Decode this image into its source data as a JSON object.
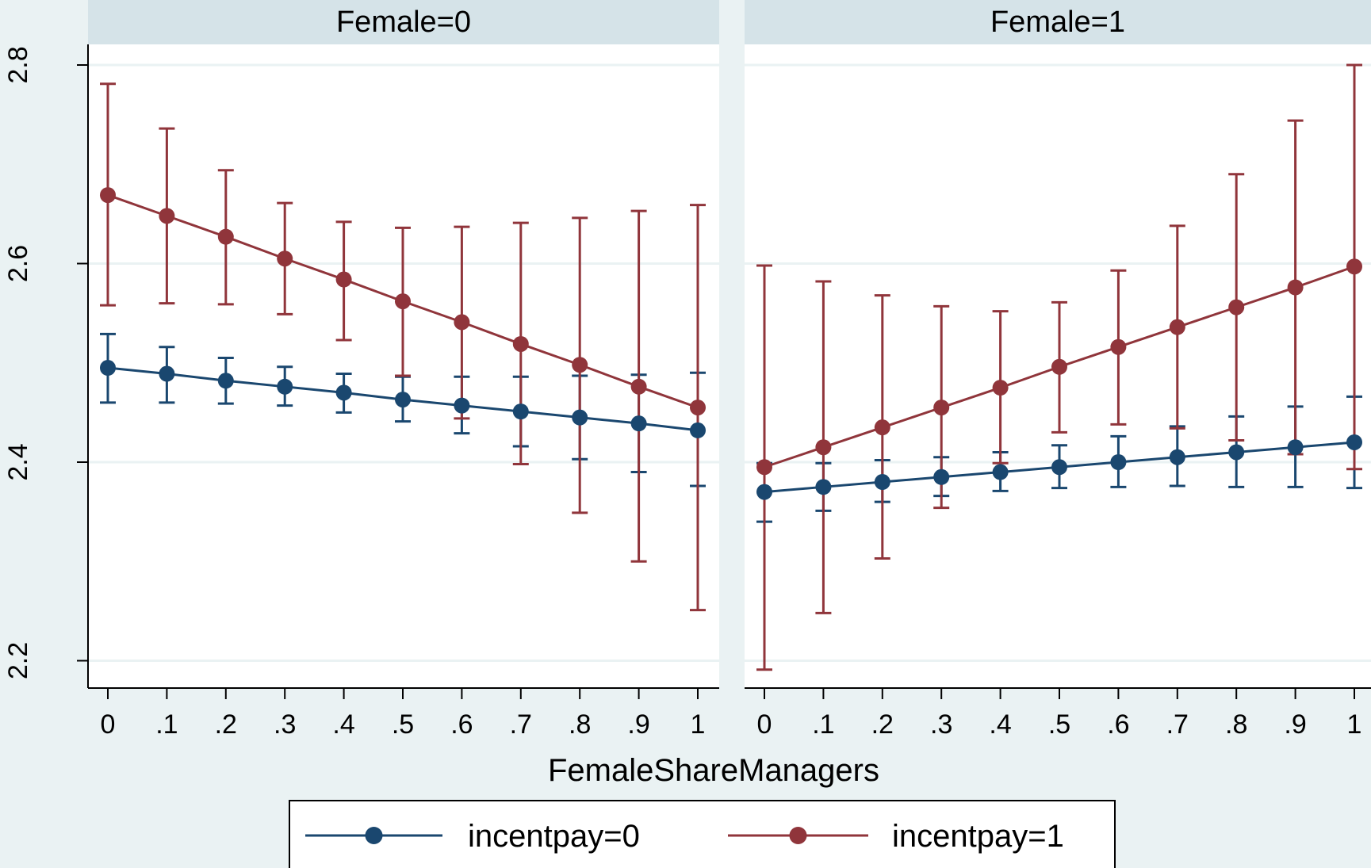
{
  "chart_data": {
    "type": "line",
    "xlabel": "FemaleShareManagers",
    "ylabel": "",
    "x": [
      0,
      0.1,
      0.2,
      0.3,
      0.4,
      0.5,
      0.6,
      0.7,
      0.8,
      0.9,
      1
    ],
    "x_tick_labels": [
      "0",
      ".1",
      ".2",
      ".3",
      ".4",
      ".5",
      ".6",
      ".7",
      ".8",
      ".9",
      "1"
    ],
    "y_ticks": [
      2.2,
      2.4,
      2.6,
      2.8
    ],
    "y_tick_labels": [
      "2.2",
      "2.4",
      "2.6",
      "2.8"
    ],
    "ylim": [
      2.18,
      2.82
    ],
    "grid": true,
    "legend_position": "bottom",
    "colors": {
      "series0": "#1a476f",
      "series1": "#90353b",
      "panel": "#ffffff",
      "strip": "#d5e3e8",
      "background": "#eaf2f3"
    },
    "panels": [
      {
        "title": "Female=0",
        "series": [
          {
            "name": "incentpay=0",
            "values": [
              2.495,
              2.489,
              2.482,
              2.476,
              2.47,
              2.463,
              2.457,
              2.451,
              2.445,
              2.439,
              2.432
            ],
            "ci_low": [
              2.46,
              2.46,
              2.459,
              2.457,
              2.45,
              2.441,
              2.429,
              2.416,
              2.403,
              2.39,
              2.376
            ],
            "ci_high": [
              2.529,
              2.516,
              2.505,
              2.496,
              2.489,
              2.486,
              2.486,
              2.486,
              2.487,
              2.488,
              2.49
            ]
          },
          {
            "name": "incentpay=1",
            "values": [
              2.669,
              2.648,
              2.627,
              2.605,
              2.584,
              2.562,
              2.541,
              2.519,
              2.498,
              2.476,
              2.455
            ],
            "ci_low": [
              2.558,
              2.56,
              2.559,
              2.549,
              2.523,
              2.487,
              2.444,
              2.398,
              2.349,
              2.3,
              2.251
            ],
            "ci_high": [
              2.781,
              2.736,
              2.694,
              2.661,
              2.642,
              2.636,
              2.637,
              2.641,
              2.646,
              2.653,
              2.659
            ]
          }
        ]
      },
      {
        "title": "Female=1",
        "series": [
          {
            "name": "incentpay=0",
            "values": [
              2.37,
              2.375,
              2.38,
              2.385,
              2.39,
              2.395,
              2.4,
              2.405,
              2.41,
              2.415,
              2.42
            ],
            "ci_low": [
              2.34,
              2.351,
              2.36,
              2.366,
              2.371,
              2.374,
              2.375,
              2.376,
              2.375,
              2.375,
              2.374
            ],
            "ci_high": [
              2.399,
              2.399,
              2.402,
              2.405,
              2.41,
              2.417,
              2.426,
              2.436,
              2.446,
              2.456,
              2.466
            ]
          },
          {
            "name": "incentpay=1",
            "values": [
              2.395,
              2.415,
              2.435,
              2.455,
              2.475,
              2.496,
              2.516,
              2.536,
              2.556,
              2.576,
              2.597
            ],
            "ci_low": [
              2.191,
              2.248,
              2.303,
              2.354,
              2.399,
              2.43,
              2.438,
              2.434,
              2.422,
              2.408,
              2.393
            ],
            "ci_high": [
              2.598,
              2.582,
              2.568,
              2.557,
              2.552,
              2.561,
              2.593,
              2.638,
              2.69,
              2.744,
              2.8
            ]
          }
        ]
      }
    ]
  }
}
